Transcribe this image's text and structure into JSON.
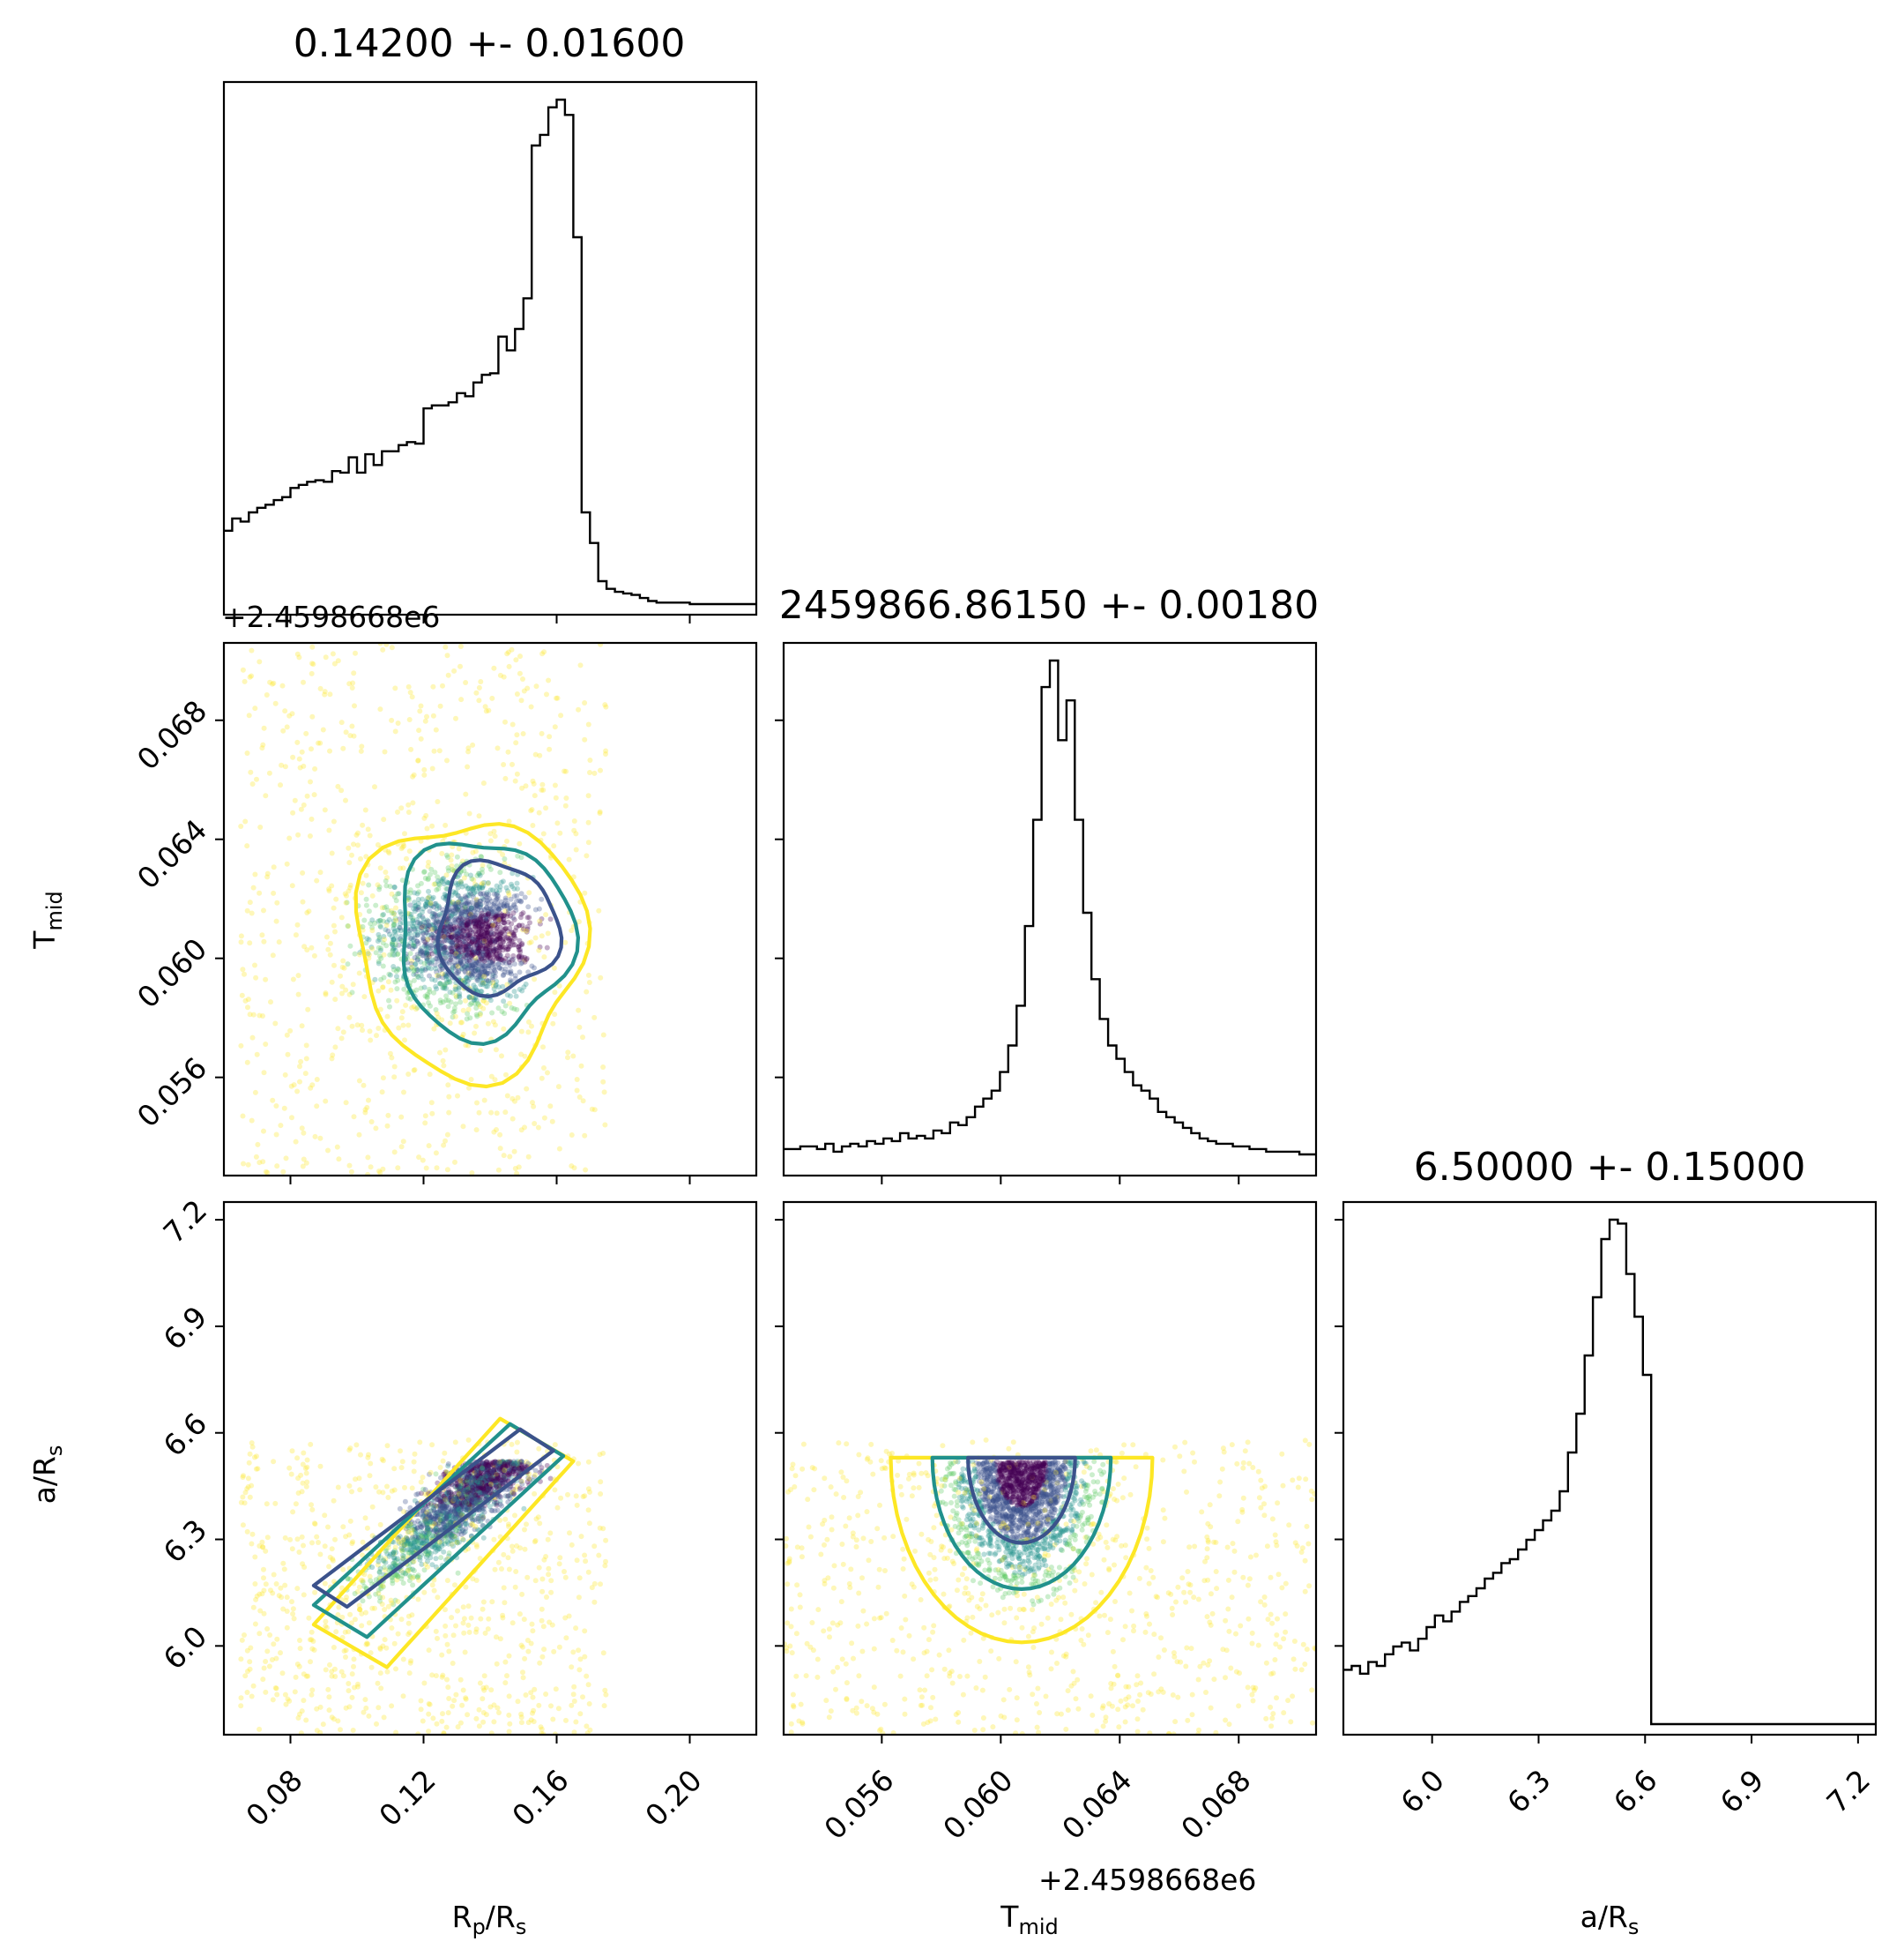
{
  "chart_data": {
    "type": "scatter",
    "variant": "corner-plot",
    "parameters": [
      {
        "key": "rp",
        "label": "R",
        "sub": "p",
        "label2": "/R",
        "sub2": "s",
        "range": [
          0.06,
          0.22
        ]
      },
      {
        "key": "tmid",
        "label": "T",
        "sub": "mid",
        "label2": "",
        "sub2": "",
        "range": [
          0.0527,
          0.0706
        ]
      },
      {
        "key": "ars",
        "label": "a/R",
        "sub": "s",
        "label2": "",
        "sub2": "",
        "range": [
          5.75,
          7.25
        ]
      }
    ],
    "titles": [
      "0.14200 +- 0.01600",
      "2459866.86150 +- 0.00180",
      "6.50000 +- 0.15000"
    ],
    "offset_text": "+2.4598668e6",
    "ticks": {
      "rp": [
        "0.08",
        "0.12",
        "0.16",
        "0.20"
      ],
      "tmid": [
        "0.056",
        "0.060",
        "0.064",
        "0.068"
      ],
      "ars": [
        "6.0",
        "6.3",
        "6.6",
        "6.9",
        "7.2"
      ]
    },
    "tick_values": {
      "rp": [
        0.08,
        0.12,
        0.16,
        0.2
      ],
      "tmid": [
        0.056,
        0.06,
        0.064,
        0.068
      ],
      "ars": [
        6.0,
        6.3,
        6.6,
        6.9,
        7.2
      ]
    },
    "histograms": {
      "rp": {
        "x0": 0.06,
        "x1": 0.22,
        "counts": [
          48,
          56,
          54,
          60,
          63,
          65,
          68,
          70,
          76,
          78,
          80,
          81,
          80,
          87,
          86,
          96,
          86,
          98,
          91,
          100,
          100,
          104,
          106,
          105,
          128,
          130,
          130,
          132,
          138,
          136,
          145,
          150,
          151,
          175,
          166,
          180,
          200,
          300,
          307,
          325,
          330,
          320,
          240,
          60,
          40,
          15,
          10,
          8,
          7,
          6,
          4,
          2,
          1,
          1,
          1,
          1,
          0,
          0,
          0,
          0,
          0,
          0,
          0,
          0
        ]
      },
      "tmid": {
        "x0": 0.0527,
        "x1": 0.0706,
        "counts": [
          6,
          6,
          7,
          7,
          6,
          8,
          5,
          7,
          8,
          7,
          9,
          8,
          10,
          9,
          12,
          10,
          11,
          10,
          13,
          12,
          16,
          15,
          18,
          22,
          25,
          28,
          35,
          45,
          60,
          90,
          130,
          180,
          190,
          160,
          175,
          130,
          95,
          70,
          55,
          45,
          40,
          35,
          30,
          28,
          25,
          20,
          18,
          16,
          14,
          12,
          10,
          9,
          8,
          8,
          7,
          7,
          6,
          6,
          5,
          5,
          5,
          5,
          4,
          4
        ]
      },
      "ars": {
        "x0": 5.75,
        "x1": 7.25,
        "counts": [
          28,
          30,
          26,
          32,
          30,
          36,
          40,
          42,
          38,
          44,
          50,
          56,
          53,
          58,
          63,
          66,
          70,
          75,
          78,
          83,
          85,
          90,
          95,
          100,
          105,
          110,
          120,
          140,
          160,
          190,
          220,
          250,
          260,
          258,
          232,
          210,
          180,
          0,
          0,
          0,
          0,
          0,
          0,
          0,
          0,
          0,
          0,
          0,
          0,
          0,
          0,
          0,
          0,
          0,
          0,
          0,
          0,
          0,
          0,
          0,
          0,
          0,
          0,
          0
        ]
      }
    },
    "contour_levels": [
      "0.5 (dark blue)",
      "0.75 (teal)",
      "0.9 (yellow)"
    ],
    "colors": {
      "low_density": "#fde725",
      "mid_density": "#21918c",
      "high_density": "#440154",
      "contour_inner": "#3b528b",
      "contour_mid": "#21918c",
      "contour_outer": "#fde725",
      "line": "#000000"
    },
    "truncation": {
      "ars_max": 6.58
    },
    "grid": false,
    "legend": "none"
  }
}
